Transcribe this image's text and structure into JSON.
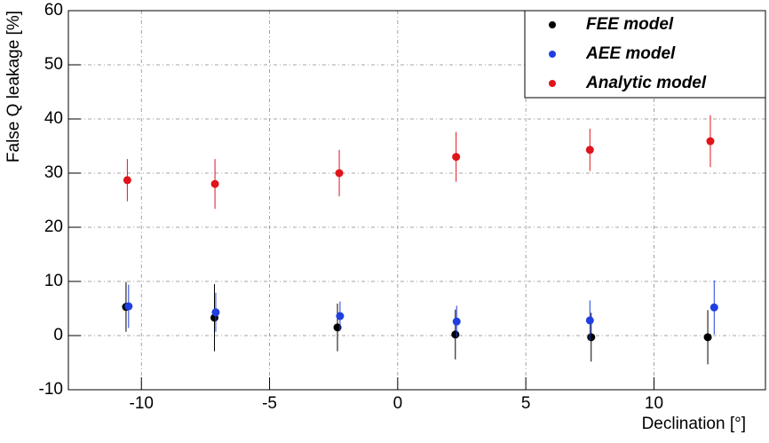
{
  "chart_data": {
    "type": "scatter",
    "x_label": "Declination [°]",
    "y_label": "False Q leakage [%]",
    "xlim": [
      -12.85,
      14.35
    ],
    "xticks": [
      -10,
      -5,
      0,
      5,
      10
    ],
    "ylim": [
      -10,
      60
    ],
    "yticks": [
      -10,
      0,
      10,
      20,
      30,
      40,
      50,
      60
    ],
    "grid": true,
    "legend": "upper right",
    "series": [
      {
        "name": "FEE model",
        "color": "#000000",
        "x": [
          -10.6,
          -7.15,
          -2.35,
          2.25,
          7.55,
          12.1
        ],
        "values": [
          5.3,
          3.3,
          1.5,
          0.2,
          -0.3,
          -0.3
        ],
        "errors": [
          4.6,
          6.2,
          4.4,
          4.6,
          4.5,
          5.0
        ]
      },
      {
        "name": "AEE model",
        "color": "#1f3fe0",
        "x": [
          -10.5,
          -7.1,
          -2.25,
          2.3,
          7.5,
          12.35
        ],
        "values": [
          5.4,
          4.3,
          3.6,
          2.6,
          2.8,
          5.2
        ],
        "errors": [
          4.0,
          3.6,
          2.7,
          2.9,
          3.7,
          5.0
        ]
      },
      {
        "name": "Analytic model",
        "color": "#e0141b",
        "x": [
          -10.55,
          -7.13,
          -2.28,
          2.28,
          7.5,
          12.2
        ],
        "values": [
          28.7,
          28.0,
          30.0,
          33.0,
          34.3,
          35.9
        ],
        "errors": [
          3.9,
          4.6,
          4.3,
          4.6,
          3.9,
          4.8
        ]
      }
    ]
  }
}
